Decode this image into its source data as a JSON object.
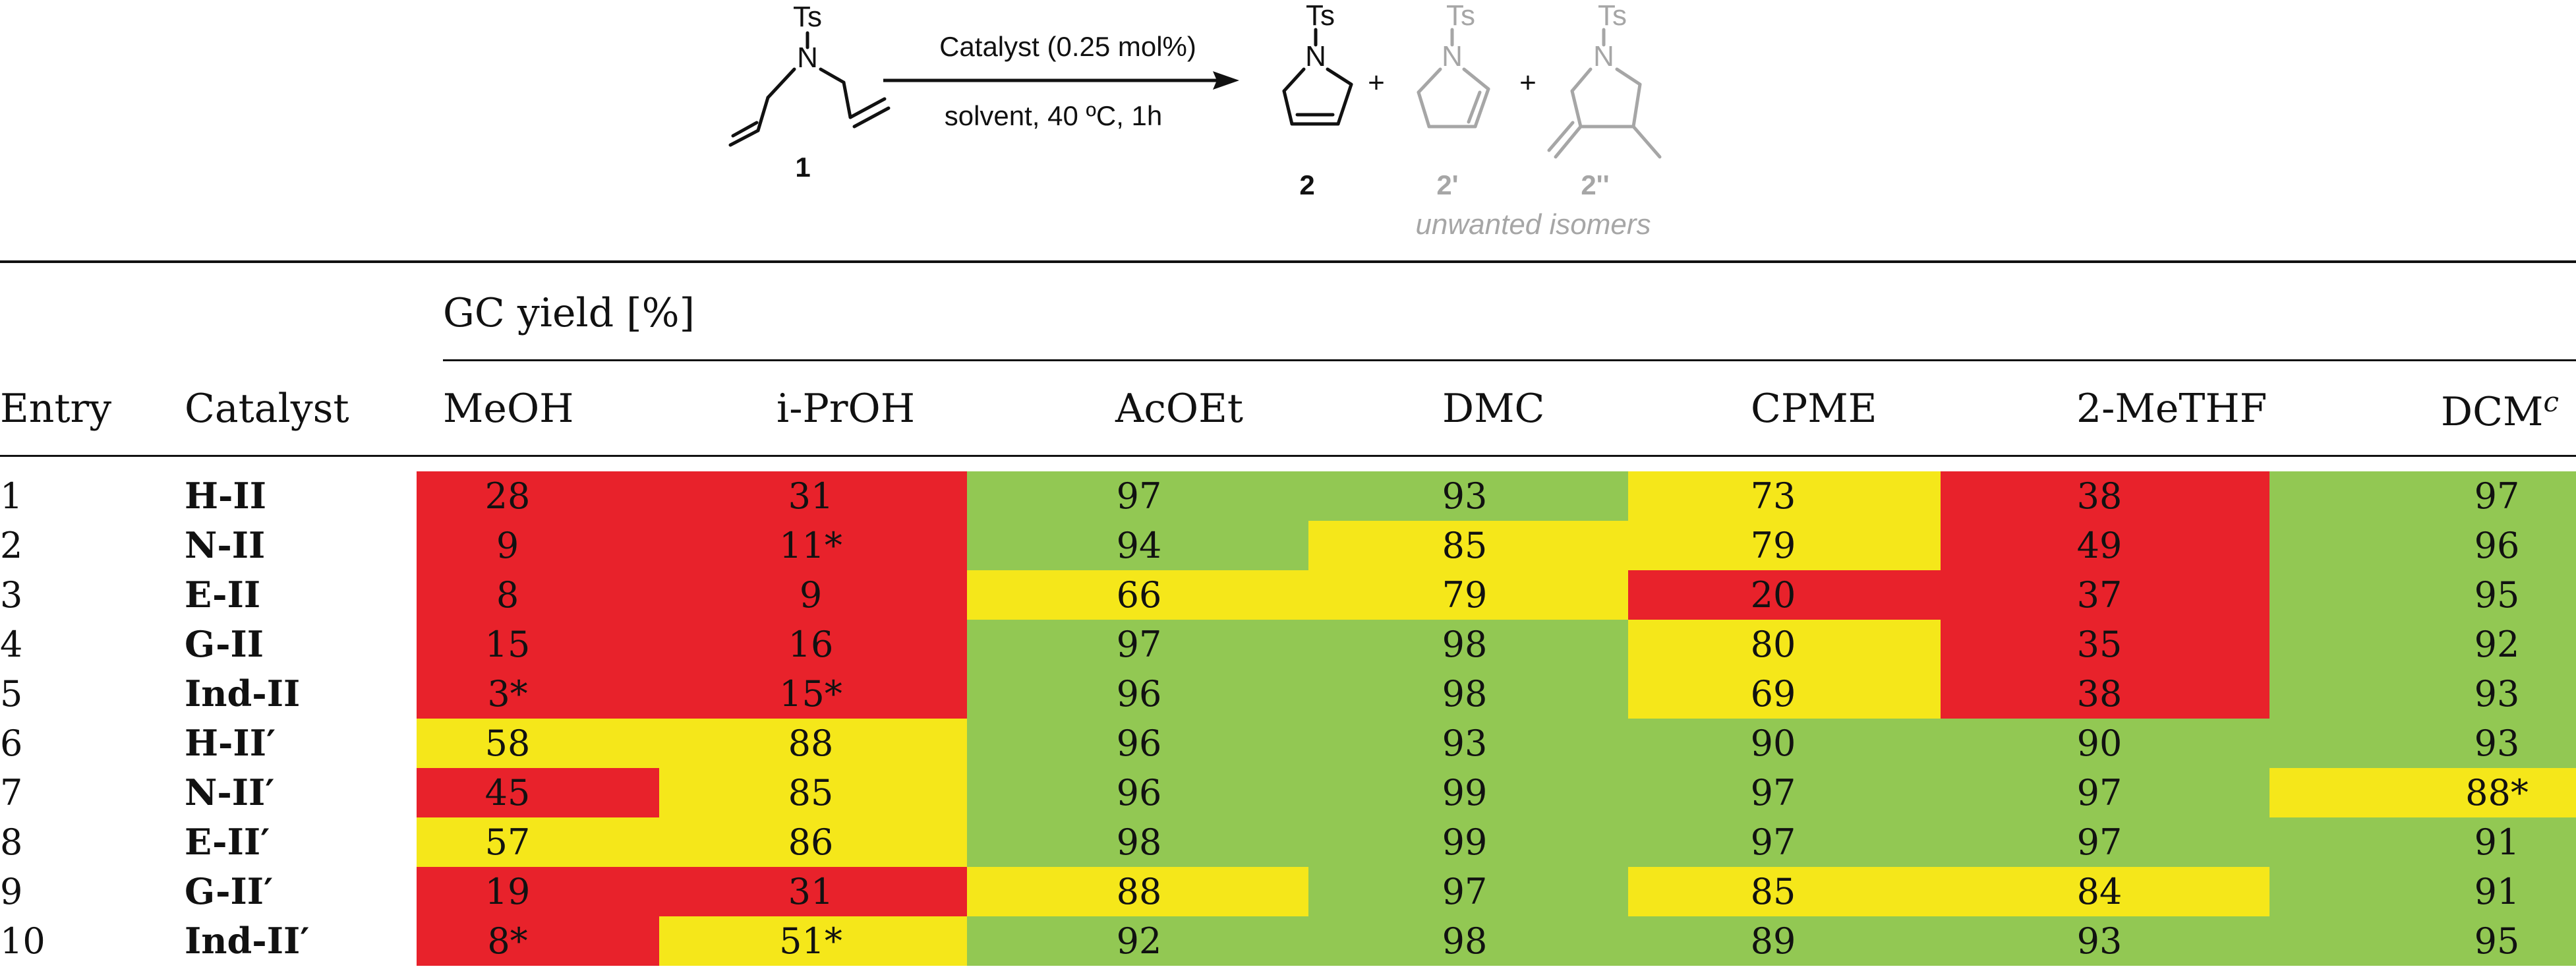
{
  "scheme": {
    "reagent_ts": "Ts",
    "reagent_n": "N",
    "reagent_label": "1",
    "conditions_top": "Catalyst (0.25 mol%)",
    "conditions_bottom": "solvent, 40 ºC, 1h",
    "product_ts": "Ts",
    "product_n": "N",
    "product_label": "2",
    "plus": "+",
    "iso1_ts": "Ts",
    "iso1_n": "N",
    "iso1_label": "2'",
    "iso2_ts": "Ts",
    "iso2_n": "N",
    "iso2_label": "2''",
    "isomers_caption": "unwanted isomers",
    "colors": {
      "black": "#111111",
      "grey": "#a6a6a6"
    }
  },
  "table": {
    "group_header": "GC yield [%]",
    "col_entry": "Entry",
    "col_catalyst": "Catalyst",
    "solvents": [
      "MeOH",
      "i-PrOH",
      "AcOEt",
      "DMC",
      "CPME",
      "2-MeTHF",
      "DCM"
    ],
    "dcm_footnote": "c",
    "rows": [
      {
        "entry": "1",
        "catalyst": "H-II",
        "values": [
          "28",
          "31",
          "97",
          "93",
          "73",
          "38",
          "97"
        ],
        "colors": [
          "red",
          "red",
          "green",
          "green",
          "yellow",
          "red",
          "green"
        ]
      },
      {
        "entry": "2",
        "catalyst": "N-II",
        "values": [
          "9",
          "11*",
          "94",
          "85",
          "79",
          "49",
          "96"
        ],
        "colors": [
          "red",
          "red",
          "green",
          "yellow",
          "yellow",
          "red",
          "green"
        ]
      },
      {
        "entry": "3",
        "catalyst": "E-II",
        "values": [
          "8",
          "9",
          "66",
          "79",
          "20",
          "37",
          "95"
        ],
        "colors": [
          "red",
          "red",
          "yellow",
          "yellow",
          "red",
          "red",
          "green"
        ]
      },
      {
        "entry": "4",
        "catalyst": "G-II",
        "values": [
          "15",
          "16",
          "97",
          "98",
          "80",
          "35",
          "92"
        ],
        "colors": [
          "red",
          "red",
          "green",
          "green",
          "yellow",
          "red",
          "green"
        ]
      },
      {
        "entry": "5",
        "catalyst": "Ind-II",
        "values": [
          "3*",
          "15*",
          "96",
          "98",
          "69",
          "38",
          "93"
        ],
        "colors": [
          "red",
          "red",
          "green",
          "green",
          "yellow",
          "red",
          "green"
        ]
      },
      {
        "entry": "6",
        "catalyst": "H-II′",
        "values": [
          "58",
          "88",
          "96",
          "93",
          "90",
          "90",
          "93"
        ],
        "colors": [
          "yellow",
          "yellow",
          "green",
          "green",
          "green",
          "green",
          "green"
        ]
      },
      {
        "entry": "7",
        "catalyst": "N-II′",
        "values": [
          "45",
          "85",
          "96",
          "99",
          "97",
          "97",
          "88*"
        ],
        "colors": [
          "red",
          "yellow",
          "green",
          "green",
          "green",
          "green",
          "yellow"
        ]
      },
      {
        "entry": "8",
        "catalyst": "E-II′",
        "values": [
          "57",
          "86",
          "98",
          "99",
          "97",
          "97",
          "91"
        ],
        "colors": [
          "yellow",
          "yellow",
          "green",
          "green",
          "green",
          "green",
          "green"
        ]
      },
      {
        "entry": "9",
        "catalyst": "G-II′",
        "values": [
          "19",
          "31",
          "88",
          "97",
          "85",
          "84",
          "91"
        ],
        "colors": [
          "red",
          "red",
          "yellow",
          "green",
          "yellow",
          "yellow",
          "green"
        ]
      },
      {
        "entry": "10",
        "catalyst": "Ind-II′",
        "values": [
          "8*",
          "51*",
          "92",
          "98",
          "89",
          "93",
          "95"
        ],
        "colors": [
          "red",
          "yellow",
          "green",
          "green",
          "green",
          "green",
          "green"
        ]
      }
    ],
    "palette": {
      "red": "#e8222b",
      "yellow": "#f5e71a",
      "green": "#92c853"
    }
  }
}
